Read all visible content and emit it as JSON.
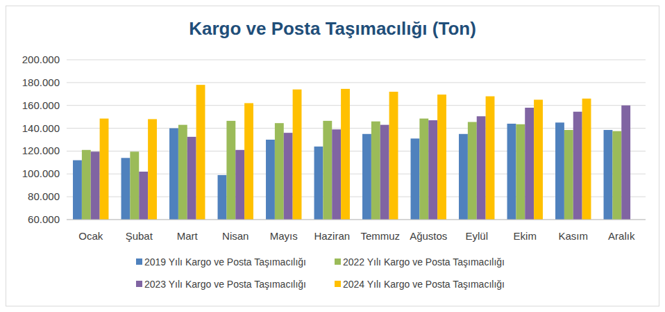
{
  "chart_data": {
    "type": "bar",
    "title": "Kargo ve Posta Taşımacılığı (Ton)",
    "categories": [
      "Ocak",
      "Şubat",
      "Mart",
      "Nisan",
      "Mayıs",
      "Haziran",
      "Temmuz",
      "Ağustos",
      "Eylül",
      "Ekim",
      "Kasım",
      "Aralık"
    ],
    "series": [
      {
        "name": "2019 Yılı Kargo ve Posta Taşımacılığı",
        "color": "#4f81bd",
        "values": [
          112000,
          114000,
          140000,
          99000,
          130000,
          124000,
          135000,
          131000,
          135000,
          144000,
          145000,
          138500
        ]
      },
      {
        "name": "2022 Yılı Kargo ve Posta Taşımacılığı",
        "color": "#9bbb59",
        "values": [
          121000,
          119500,
          143000,
          146500,
          144500,
          146500,
          146000,
          148500,
          145500,
          143500,
          138500,
          137500
        ]
      },
      {
        "name": "2023 Yılı Kargo ve Posta Taşımacılığı",
        "color": "#8064a2",
        "values": [
          119500,
          102000,
          132500,
          121000,
          136000,
          139000,
          143000,
          147000,
          150500,
          158000,
          154500,
          160000
        ]
      },
      {
        "name": "2024 Yılı Kargo ve Posta Taşımacılığı",
        "color": "#ffc000",
        "values": [
          148500,
          148000,
          178000,
          162000,
          174000,
          174500,
          172000,
          169500,
          168000,
          165000,
          166000,
          null
        ]
      }
    ],
    "ylim": [
      60000,
      200000
    ],
    "yticks": [
      {
        "value": 60000,
        "label": "60.000"
      },
      {
        "value": 80000,
        "label": "80.000"
      },
      {
        "value": 100000,
        "label": "100.000"
      },
      {
        "value": 120000,
        "label": "120.000"
      },
      {
        "value": 140000,
        "label": "140.000"
      },
      {
        "value": 160000,
        "label": "160.000"
      },
      {
        "value": 180000,
        "label": "180.000"
      },
      {
        "value": 200000,
        "label": "200.000"
      }
    ],
    "grid": true,
    "legend": "bottom"
  }
}
